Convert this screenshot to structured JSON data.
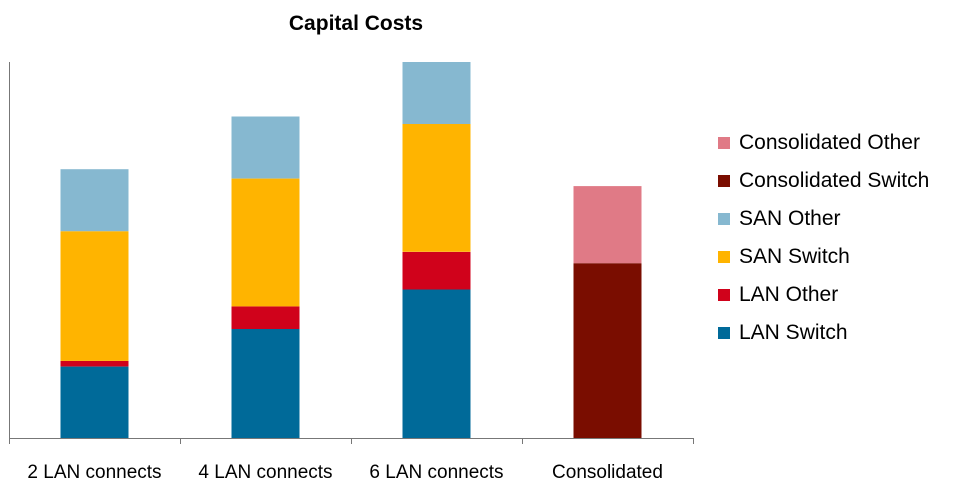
{
  "chart_data": {
    "type": "bar",
    "stacked": true,
    "title": "Capital Costs",
    "xlabel": "",
    "ylabel": "",
    "categories": [
      "2 LAN connects",
      "4 LAN connects",
      "6 LAN connects",
      "Consolidated"
    ],
    "ylim": [
      0,
      100
    ],
    "grid": false,
    "y_tick_labels_shown": false,
    "legend_position": "right",
    "series": [
      {
        "name": "LAN Switch",
        "color": "#006a99",
        "values": [
          19,
          29,
          39.5,
          0
        ]
      },
      {
        "name": "LAN Other",
        "color": "#d0021b",
        "values": [
          1.5,
          6,
          10,
          0
        ]
      },
      {
        "name": "SAN Switch",
        "color": "#ffb400",
        "values": [
          34.5,
          34,
          34,
          0
        ]
      },
      {
        "name": "SAN Other",
        "color": "#86b8d0",
        "values": [
          16.5,
          16.5,
          16.5,
          0
        ]
      },
      {
        "name": "Consolidated Switch",
        "color": "#7a0d00",
        "values": [
          0,
          0,
          0,
          46.5
        ]
      },
      {
        "name": "Consolidated Other",
        "color": "#e07a86",
        "values": [
          0,
          0,
          0,
          20.5
        ]
      }
    ]
  }
}
